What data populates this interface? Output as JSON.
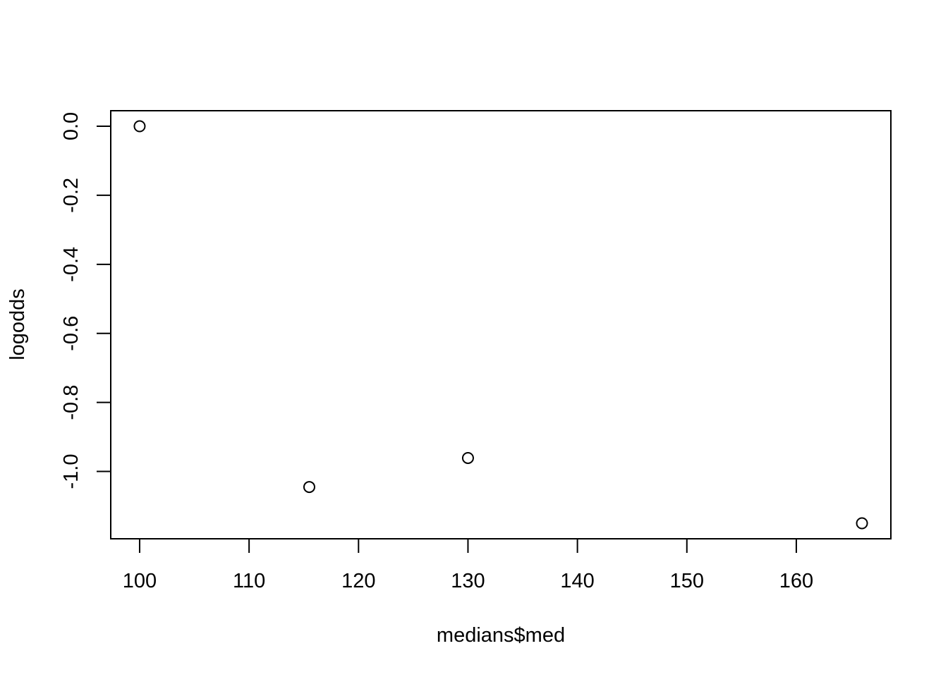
{
  "chart_data": {
    "type": "scatter",
    "title": "",
    "xlabel": "medians$med",
    "ylabel": "logodds",
    "xlim": [
      97.36,
      168.64
    ],
    "ylim": [
      -1.195,
      0.045
    ],
    "x_ticks": [
      100,
      110,
      120,
      130,
      140,
      150,
      160
    ],
    "y_ticks": [
      0.0,
      -0.2,
      -0.4,
      -0.6,
      -0.8,
      -1.0
    ],
    "x_tick_labels": [
      "100",
      "110",
      "120",
      "130",
      "140",
      "150",
      "160"
    ],
    "y_tick_labels": [
      "0.0",
      "-0.2",
      "-0.4",
      "-0.6",
      "-0.8",
      "-1.0"
    ],
    "grid": false,
    "legend": "none",
    "point_style": "open-circle",
    "colors": {
      "ink": "#000000",
      "background": "#ffffff"
    },
    "series": [
      {
        "x": [
          100,
          115.5,
          130,
          166
        ],
        "y": [
          0.0,
          -1.045,
          -0.961,
          -1.15
        ]
      }
    ]
  }
}
